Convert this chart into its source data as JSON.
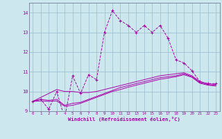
{
  "xlabel": "Windchill (Refroidissement éolien,°C)",
  "x": [
    0,
    1,
    2,
    3,
    4,
    5,
    6,
    7,
    8,
    9,
    10,
    11,
    12,
    13,
    14,
    15,
    16,
    17,
    18,
    19,
    20,
    21,
    22,
    23
  ],
  "y_main": [
    9.5,
    9.6,
    9.1,
    10.0,
    8.65,
    10.8,
    9.9,
    10.85,
    10.6,
    13.0,
    14.1,
    13.6,
    13.35,
    13.0,
    13.35,
    13.0,
    13.35,
    12.7,
    11.6,
    11.45,
    11.05,
    10.5,
    10.4,
    10.4
  ],
  "y_smooth1": [
    9.5,
    9.7,
    9.9,
    10.1,
    10.0,
    10.0,
    9.95,
    9.95,
    10.0,
    10.1,
    10.2,
    10.3,
    10.4,
    10.5,
    10.6,
    10.7,
    10.8,
    10.85,
    10.9,
    10.95,
    10.8,
    10.5,
    10.4,
    10.35
  ],
  "y_smooth2": [
    9.5,
    9.6,
    9.55,
    9.6,
    9.3,
    9.4,
    9.45,
    9.6,
    9.75,
    9.9,
    10.05,
    10.2,
    10.3,
    10.4,
    10.5,
    10.6,
    10.7,
    10.75,
    10.8,
    10.9,
    10.75,
    10.45,
    10.35,
    10.3
  ],
  "y_smooth3": [
    9.5,
    9.52,
    9.5,
    9.52,
    9.25,
    9.3,
    9.4,
    9.55,
    9.7,
    9.85,
    10.0,
    10.1,
    10.22,
    10.32,
    10.42,
    10.52,
    10.62,
    10.68,
    10.75,
    10.85,
    10.72,
    10.42,
    10.32,
    10.28
  ],
  "color_main": "#aa00aa",
  "bg_color": "#cce8ee",
  "grid_color": "#99bbcc",
  "ylim": [
    9.0,
    14.5
  ],
  "xlim": [
    -0.5,
    23.5
  ],
  "yticks": [
    9,
    10,
    11,
    12,
    13,
    14
  ],
  "xticks": [
    0,
    1,
    2,
    3,
    4,
    5,
    6,
    7,
    8,
    9,
    10,
    11,
    12,
    13,
    14,
    15,
    16,
    17,
    18,
    19,
    20,
    21,
    22,
    23
  ]
}
